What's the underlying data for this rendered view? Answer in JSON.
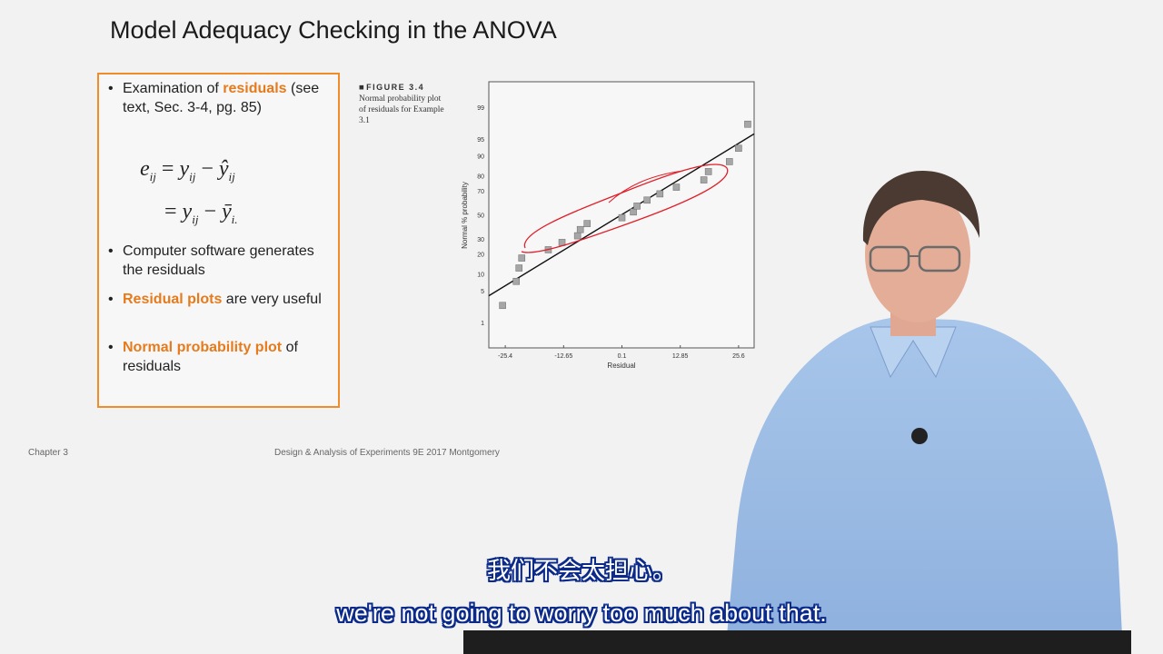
{
  "slide": {
    "title": "Model Adequacy Checking in the ANOVA",
    "bullets": [
      {
        "pre": "Examination of ",
        "hl": "residuals",
        "post": " (see text, Sec. 3-4, pg. 85)"
      },
      {
        "pre": "Computer software generates the residuals",
        "hl": "",
        "post": ""
      },
      {
        "pre": "",
        "hl": "Residual plots",
        "post": " are very useful"
      },
      {
        "pre": "",
        "hl": "Normal probability plot",
        "post": " of residuals"
      }
    ],
    "bullet_symbol": "•",
    "equation": {
      "lhs": "e",
      "lhs_sub": "ij",
      "eq": "=",
      "y": "y",
      "y_sub": "ij",
      "minus": "−",
      "yhat": "ŷ",
      "yhat_sub": "ij",
      "ybar": "ȳ",
      "ybar_sub": "i."
    },
    "figure_caption": {
      "label": "FIGURE 3.4",
      "text": "Normal probability plot of residuals for Example 3.1"
    },
    "footer_left": "Chapter 3",
    "footer_center": "Design & Analysis of Experiments 9E 2017 Montgomery"
  },
  "chart_data": {
    "type": "scatter",
    "xlabel": "Residual",
    "ylabel": "Normal % probability",
    "x_ticks": [
      "-25.4",
      "-12.65",
      "0.1",
      "12.85",
      "25.6"
    ],
    "x_tick_values": [
      -25.4,
      -12.65,
      0.1,
      12.85,
      25.6
    ],
    "y_ticks": [
      "1",
      "5",
      "10",
      "20",
      "30",
      "50",
      "70",
      "80",
      "90",
      "95",
      "99"
    ],
    "y_tick_values": [
      1,
      5,
      10,
      20,
      30,
      50,
      70,
      80,
      90,
      95,
      99
    ],
    "xlim": [
      -29.0,
      29.0
    ],
    "ylim": [
      0.2,
      99.8
    ],
    "points": [
      {
        "x": -26.0,
        "p": 2.5
      },
      {
        "x": -23.0,
        "p": 7.5
      },
      {
        "x": -22.4,
        "p": 12.5
      },
      {
        "x": -21.8,
        "p": 17.5
      },
      {
        "x": -16.0,
        "p": 22.5
      },
      {
        "x": -13.0,
        "p": 27.5
      },
      {
        "x": -9.6,
        "p": 32.5
      },
      {
        "x": -9.0,
        "p": 37.5
      },
      {
        "x": -7.5,
        "p": 42.5
      },
      {
        "x": 0.1,
        "p": 47.5
      },
      {
        "x": 2.6,
        "p": 52.5
      },
      {
        "x": 3.4,
        "p": 57.5
      },
      {
        "x": 5.6,
        "p": 62.5
      },
      {
        "x": 8.4,
        "p": 67.5
      },
      {
        "x": 12.0,
        "p": 72.5
      },
      {
        "x": 18.0,
        "p": 77.5
      },
      {
        "x": 19.0,
        "p": 82.5
      },
      {
        "x": 23.6,
        "p": 87.5
      },
      {
        "x": 25.6,
        "p": 92.5
      },
      {
        "x": 27.6,
        "p": 97.5
      }
    ],
    "fit_line": {
      "x0": -29.0,
      "p0": 4.0,
      "x1": 29.0,
      "p1": 96.0
    },
    "marker": "square",
    "colors": {
      "marker": "#a6a6a6",
      "line": "#111111",
      "annotation": "#e0202a"
    }
  },
  "subtitles": {
    "zh": "我们不会太担心。",
    "en": "we're not going to worry too much about that."
  }
}
